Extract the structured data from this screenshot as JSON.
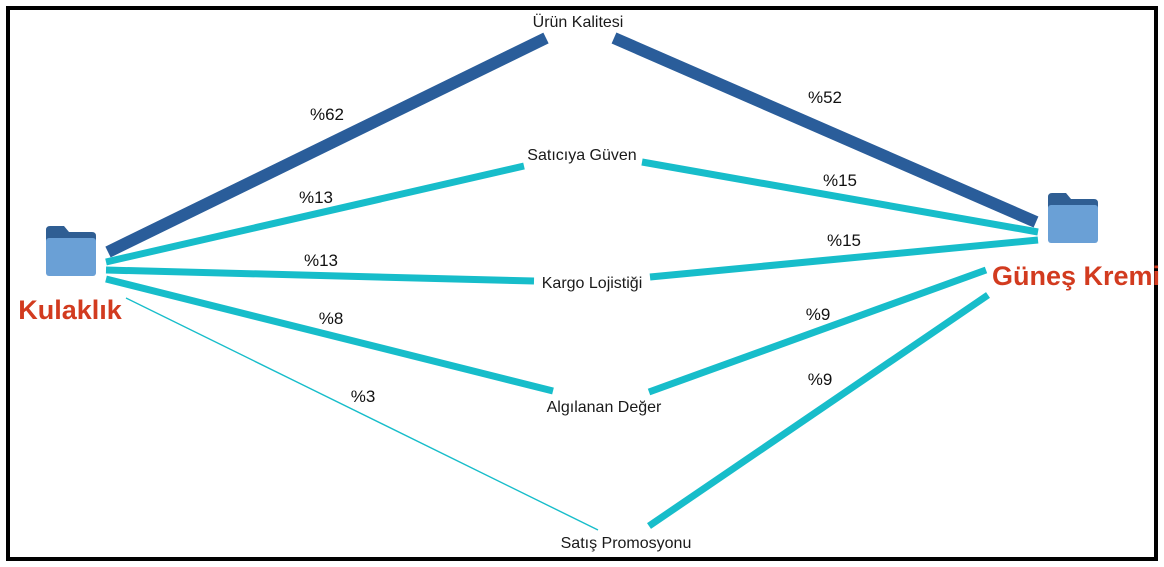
{
  "colors": {
    "strong": "#2a5d9a",
    "normal": "#17bdca",
    "brand": "#d23b1f",
    "folder_back": "#2f5e93",
    "folder_front": "#6aa0d6"
  },
  "sources": [
    {
      "id": "left",
      "label": "Kulaklık",
      "icon": "folder-icon"
    },
    {
      "id": "right",
      "label": "Güneş Kremi",
      "icon": "folder-icon"
    }
  ],
  "factors": [
    {
      "label": "Ürün Kalitesi"
    },
    {
      "label": "Satıcıya Güven"
    },
    {
      "label": "Kargo Lojistiği"
    },
    {
      "label": "Algılanan Değer"
    },
    {
      "label": "Satış Promosyonu"
    }
  ],
  "links": [
    {
      "source": "left",
      "factor": 0,
      "value": 62,
      "label": "%62"
    },
    {
      "source": "left",
      "factor": 1,
      "value": 13,
      "label": "%13"
    },
    {
      "source": "left",
      "factor": 2,
      "value": 13,
      "label": "%13"
    },
    {
      "source": "left",
      "factor": 3,
      "value": 8,
      "label": "%8"
    },
    {
      "source": "left",
      "factor": 4,
      "value": 3,
      "label": "%3"
    },
    {
      "source": "right",
      "factor": 0,
      "value": 52,
      "label": "%52"
    },
    {
      "source": "right",
      "factor": 1,
      "value": 15,
      "label": "%15"
    },
    {
      "source": "right",
      "factor": 2,
      "value": 15,
      "label": "%15"
    },
    {
      "source": "right",
      "factor": 3,
      "value": 9,
      "label": "%9"
    },
    {
      "source": "right",
      "factor": 4,
      "value": 9,
      "label": "%9"
    }
  ]
}
